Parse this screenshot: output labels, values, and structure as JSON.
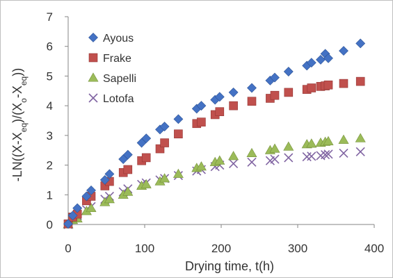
{
  "chart_data": {
    "type": "scatter",
    "title": "",
    "xlabel": "Drying time, t(h)",
    "ylabel_parts": [
      "-LN((X-X",
      "eq",
      ")/(X",
      "o",
      "-X",
      "eq",
      "))"
    ],
    "xlim": [
      0,
      400
    ],
    "ylim": [
      0,
      7
    ],
    "xticks": [
      0,
      100,
      200,
      300,
      400
    ],
    "yticks": [
      0,
      1,
      2,
      3,
      4,
      5,
      6,
      7
    ],
    "grid": false,
    "legend_position": "top-left",
    "series": [
      {
        "name": "Ayous",
        "marker": "diamond",
        "color": "#4472C4",
        "x": [
          0,
          6,
          12,
          24,
          30,
          48,
          54,
          72,
          78,
          96,
          102,
          120,
          126,
          144,
          168,
          174,
          192,
          198,
          216,
          240,
          264,
          270,
          288,
          312,
          318,
          330,
          336,
          340,
          360,
          382
        ],
        "y": [
          0.02,
          0.3,
          0.55,
          0.95,
          1.15,
          1.5,
          1.7,
          2.2,
          2.35,
          2.75,
          2.9,
          3.2,
          3.3,
          3.55,
          3.9,
          4.0,
          4.2,
          4.3,
          4.45,
          4.6,
          4.85,
          4.95,
          5.15,
          5.35,
          5.45,
          5.55,
          5.75,
          5.6,
          5.85,
          6.1
        ]
      },
      {
        "name": "Frake",
        "marker": "square",
        "color": "#C0504D",
        "x": [
          0,
          6,
          12,
          24,
          30,
          48,
          54,
          72,
          78,
          96,
          102,
          120,
          126,
          144,
          168,
          174,
          192,
          198,
          216,
          240,
          264,
          270,
          288,
          312,
          318,
          330,
          336,
          340,
          360,
          382
        ],
        "y": [
          0.02,
          0.25,
          0.35,
          0.8,
          0.95,
          1.3,
          1.45,
          1.75,
          1.85,
          2.15,
          2.25,
          2.55,
          2.75,
          3.05,
          3.4,
          3.45,
          3.7,
          3.8,
          4.0,
          4.15,
          4.25,
          4.35,
          4.45,
          4.55,
          4.6,
          4.65,
          4.67,
          4.7,
          4.75,
          4.82
        ]
      },
      {
        "name": "Sapelli",
        "marker": "triangle",
        "color": "#9BBB59",
        "x": [
          0,
          6,
          12,
          24,
          30,
          48,
          54,
          72,
          78,
          96,
          102,
          120,
          126,
          144,
          168,
          174,
          192,
          198,
          216,
          240,
          264,
          270,
          288,
          312,
          318,
          330,
          336,
          340,
          360,
          382
        ],
        "y": [
          0.0,
          0.15,
          0.2,
          0.45,
          0.55,
          0.75,
          0.85,
          1.0,
          1.1,
          1.3,
          1.35,
          1.45,
          1.55,
          1.7,
          1.9,
          1.95,
          2.1,
          2.15,
          2.3,
          2.4,
          2.5,
          2.55,
          2.62,
          2.7,
          2.72,
          2.75,
          2.78,
          2.8,
          2.85,
          2.9
        ]
      },
      {
        "name": "Lotofa",
        "marker": "x",
        "color": "#8064A2",
        "x": [
          0,
          6,
          12,
          24,
          30,
          48,
          54,
          72,
          78,
          96,
          102,
          120,
          126,
          144,
          168,
          174,
          192,
          198,
          216,
          240,
          264,
          270,
          288,
          312,
          318,
          330,
          336,
          340,
          360,
          382
        ],
        "y": [
          0.0,
          0.2,
          0.3,
          0.5,
          0.6,
          0.85,
          0.95,
          1.1,
          1.2,
          1.35,
          1.4,
          1.5,
          1.55,
          1.65,
          1.8,
          1.85,
          1.95,
          2.0,
          2.05,
          2.1,
          2.15,
          2.2,
          2.25,
          2.28,
          2.3,
          2.32,
          2.35,
          2.37,
          2.4,
          2.45
        ]
      }
    ]
  }
}
